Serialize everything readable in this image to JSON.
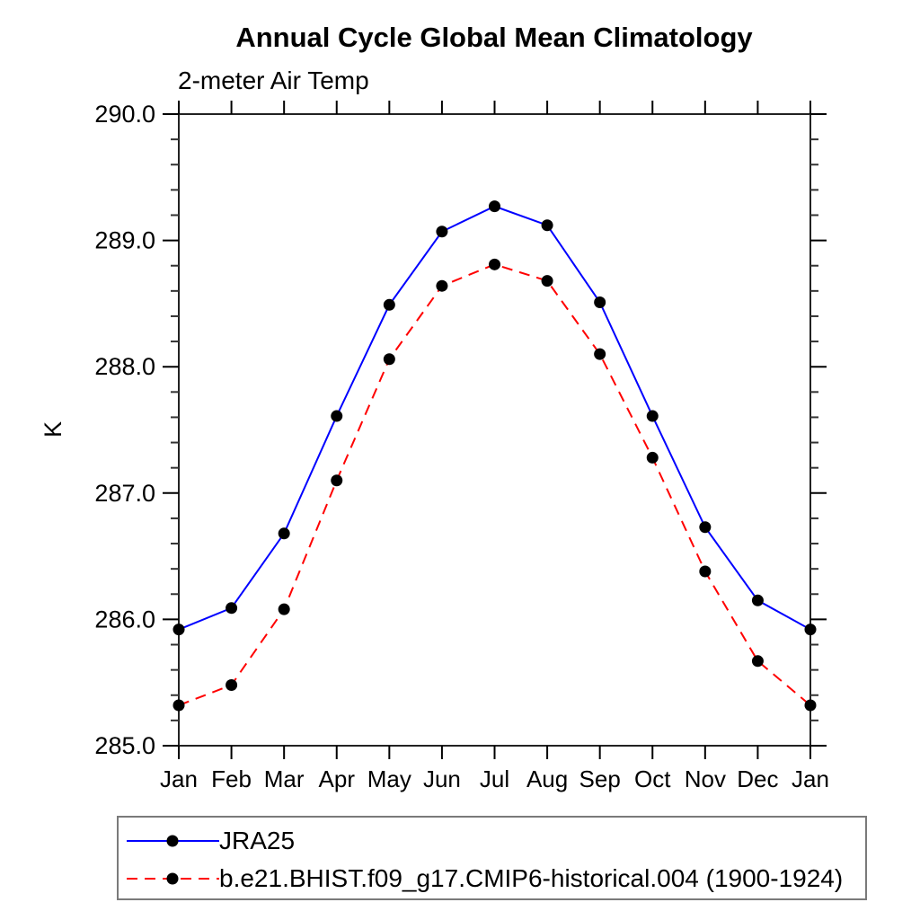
{
  "title": "Annual Cycle Global Mean Climatology",
  "subtitle": "2-meter Air Temp",
  "chart_data": {
    "type": "line",
    "categories": [
      "Jan",
      "Feb",
      "Mar",
      "Apr",
      "May",
      "Jun",
      "Jul",
      "Aug",
      "Sep",
      "Oct",
      "Nov",
      "Dec",
      "Jan"
    ],
    "title": "Annual Cycle Global Mean Climatology",
    "subtitle": "2-meter Air Temp",
    "xlabel": "",
    "ylabel": "K",
    "ylim": [
      285.0,
      290.0
    ],
    "ytick_interval": 1.0,
    "yminor_interval": 0.2,
    "ytick_format_decimals": 1,
    "grid": false,
    "legend_position": "bottom-left",
    "marker_color": "#000000",
    "series": [
      {
        "name": "JRA25",
        "color": "#0000ff",
        "line_style": "solid",
        "marker": "circle",
        "values": [
          285.92,
          286.09,
          286.68,
          287.61,
          288.49,
          289.07,
          289.27,
          289.12,
          288.51,
          287.61,
          286.73,
          286.15,
          285.92
        ]
      },
      {
        "name": "b.e21.BHIST.f09_g17.CMIP6-historical.004 (1900-1924)",
        "color": "#ff0000",
        "line_style": "dashed",
        "marker": "circle",
        "values": [
          285.32,
          285.48,
          286.08,
          287.1,
          288.06,
          288.64,
          288.81,
          288.68,
          288.1,
          287.28,
          286.38,
          285.67,
          285.32
        ]
      }
    ]
  }
}
